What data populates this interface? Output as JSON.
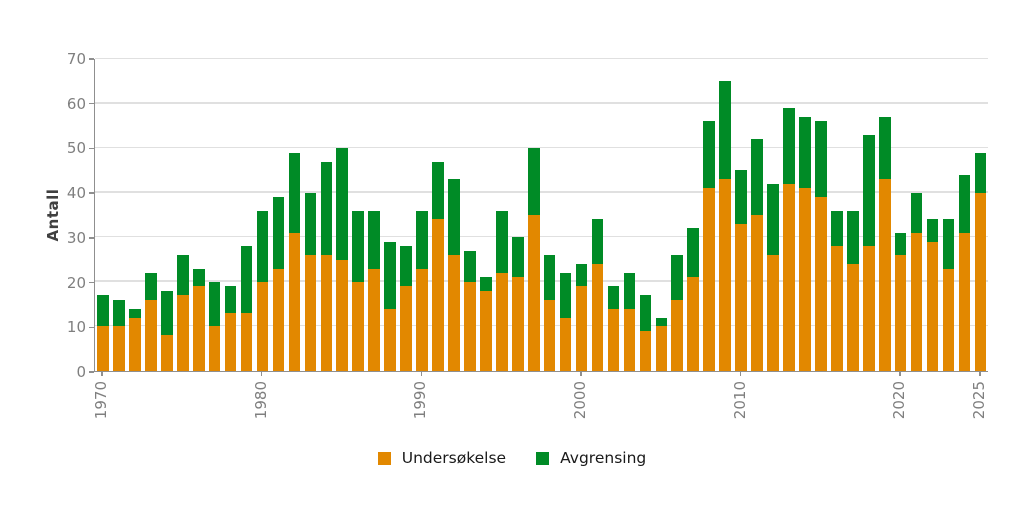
{
  "chart_data": {
    "type": "bar",
    "stacked": true,
    "title": "",
    "xlabel": "",
    "ylabel": "Antall",
    "ylim": [
      0,
      70
    ],
    "yticks": [
      0,
      10,
      20,
      30,
      40,
      50,
      60,
      70
    ],
    "grid": "horizontal-major",
    "legend_position": "bottom",
    "x": [
      1970,
      1971,
      1972,
      1973,
      1974,
      1975,
      1976,
      1977,
      1978,
      1979,
      1980,
      1981,
      1982,
      1983,
      1984,
      1985,
      1986,
      1987,
      1988,
      1989,
      1990,
      1991,
      1992,
      1993,
      1994,
      1995,
      1996,
      1997,
      1998,
      1999,
      2000,
      2001,
      2002,
      2003,
      2004,
      2005,
      2006,
      2007,
      2008,
      2009,
      2010,
      2011,
      2012,
      2013,
      2014,
      2015,
      2016,
      2017,
      2018,
      2019,
      2020,
      2021,
      2022,
      2023,
      2024,
      2025
    ],
    "xticks": [
      1970,
      1980,
      1990,
      2000,
      2010,
      2020,
      2025
    ],
    "series": [
      {
        "name": "Undersøkelse",
        "color": "#e28800",
        "values": [
          10,
          10,
          12,
          16,
          8,
          17,
          19,
          10,
          13,
          13,
          20,
          23,
          31,
          26,
          26,
          25,
          20,
          23,
          14,
          19,
          23,
          34,
          26,
          20,
          18,
          22,
          21,
          35,
          16,
          12,
          19,
          24,
          14,
          14,
          9,
          10,
          16,
          21,
          41,
          43,
          33,
          35,
          26,
          42,
          41,
          39,
          28,
          24,
          28,
          43,
          26,
          31,
          29,
          23,
          31,
          40
        ]
      },
      {
        "name": "Avgrensing",
        "color": "#008b26",
        "values": [
          7,
          6,
          2,
          6,
          10,
          9,
          4,
          10,
          6,
          15,
          16,
          16,
          18,
          14,
          21,
          25,
          16,
          13,
          15,
          9,
          13,
          13,
          17,
          7,
          3,
          14,
          9,
          15,
          10,
          10,
          5,
          10,
          5,
          8,
          8,
          2,
          10,
          11,
          15,
          22,
          12,
          17,
          16,
          17,
          16,
          17,
          8,
          12,
          25,
          14,
          5,
          9,
          5,
          11,
          13,
          9
        ]
      }
    ],
    "colors": {
      "undersokelse": "#e28800",
      "avgrensing": "#008b26",
      "gridline": "#e0e0e0",
      "axis_line": "#8f8f8f",
      "tick_label": "#7f7f7f",
      "axis_title": "#404040",
      "legend_text": "#1a1a1a"
    }
  }
}
